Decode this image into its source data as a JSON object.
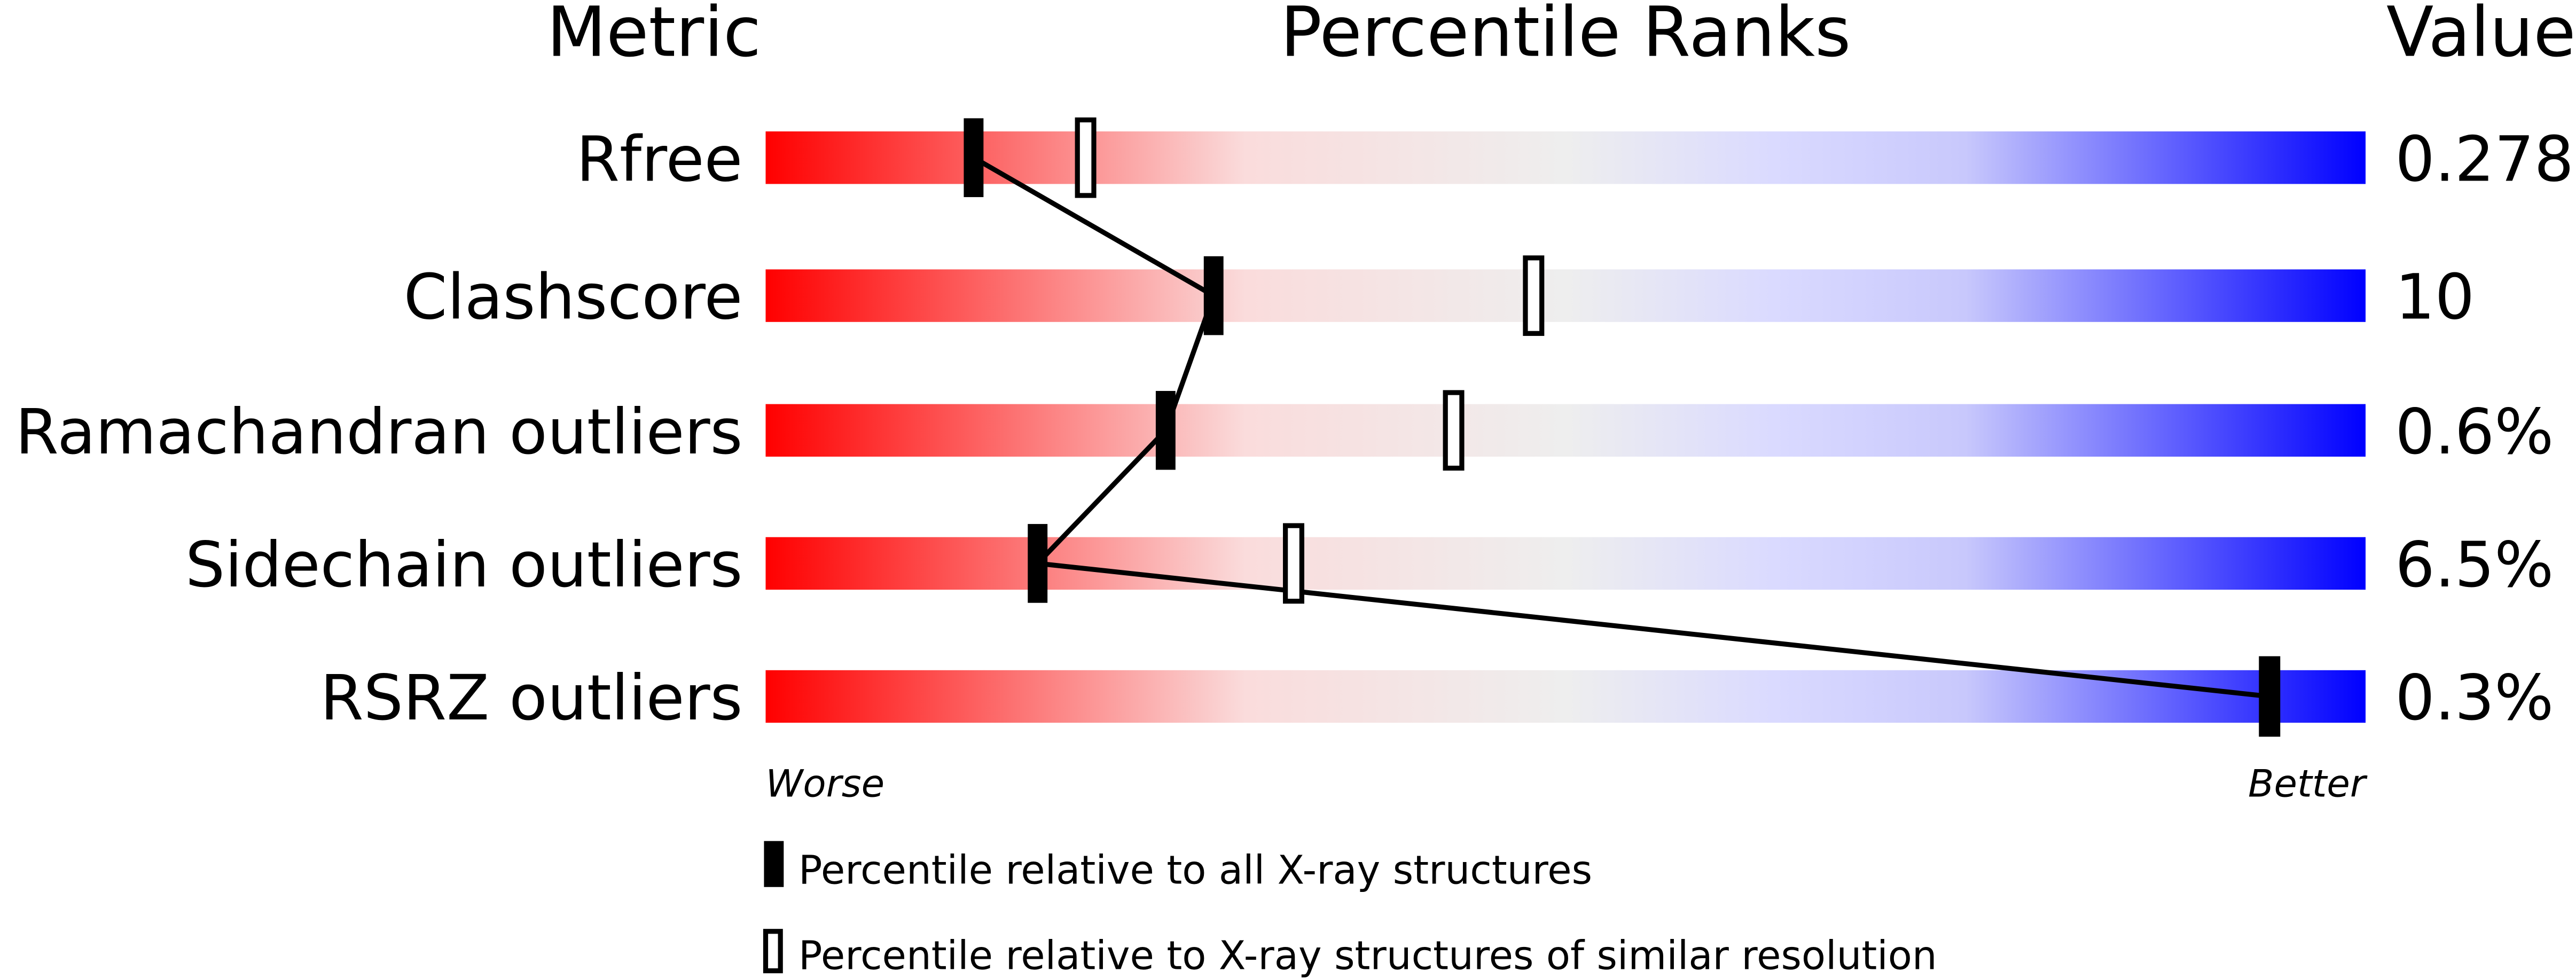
{
  "chart_data": {
    "type": "percentile-bar",
    "headers": {
      "metric": "Metric",
      "ranks": "Percentile Ranks",
      "value": "Value"
    },
    "xlim": [
      0,
      100
    ],
    "rows": [
      {
        "metric": "Rfree",
        "value": "0.278",
        "percentile_all": 13,
        "percentile_similar": 20
      },
      {
        "metric": "Clashscore",
        "value": "10",
        "percentile_all": 28,
        "percentile_similar": 48
      },
      {
        "metric": "Ramachandran outliers",
        "value": "0.6%",
        "percentile_all": 25,
        "percentile_similar": 43
      },
      {
        "metric": "Sidechain outliers",
        "value": "6.5%",
        "percentile_all": 17,
        "percentile_similar": 33
      },
      {
        "metric": "RSRZ outliers",
        "value": "0.3%",
        "percentile_all": 94,
        "percentile_similar": 94
      }
    ],
    "axis_labels": {
      "left": "Worse",
      "right": "Better"
    },
    "legend": [
      {
        "marker": "filled",
        "label": "Percentile relative to all X-ray structures"
      },
      {
        "marker": "open",
        "label": "Percentile relative to X-ray structures of similar resolution"
      }
    ],
    "colors": {
      "worse": "#ff0000",
      "middle": "#f0f0f0",
      "better": "#0000ff"
    }
  }
}
